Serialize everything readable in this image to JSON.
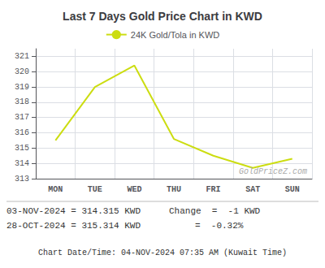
{
  "chart_data": {
    "type": "line",
    "title": "Last 7 Days Gold Price Chart in KWD",
    "categories": [
      "MON",
      "TUE",
      "WED",
      "THU",
      "FRI",
      "SAT",
      "SUN"
    ],
    "series": [
      {
        "name": "24K Gold/Tola in KWD",
        "color": "#ccdd11",
        "values": [
          315.5,
          319.0,
          320.4,
          315.6,
          314.5,
          313.7,
          314.3
        ]
      }
    ],
    "ylim": [
      313,
      321.5
    ],
    "yticks": [
      313,
      314,
      315,
      316,
      317,
      318,
      319,
      320,
      321
    ],
    "grid": true,
    "legend": "top",
    "annotations": [
      "GoldPriceZ.com",
      "03-NOV-2024 = 314.315 KWD",
      "28-OCT-2024 = 315.314 KWD",
      "Change  =  -1 KWD",
      "=  -0.32%",
      "Chart Date/Time: 04-NOV-2024 07:35 AM (Kuwait Time)"
    ]
  }
}
